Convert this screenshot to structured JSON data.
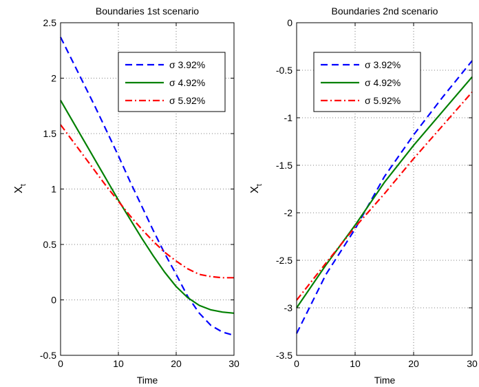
{
  "chart_data": [
    {
      "type": "line",
      "title": "Boundaries 1st scenario",
      "xlabel": "Time",
      "ylabel": "X",
      "ylabel_sub": "t",
      "xlim": [
        0,
        30
      ],
      "ylim": [
        -0.5,
        2.5
      ],
      "xticks": [
        0,
        10,
        20,
        30
      ],
      "xtick_labels": [
        "0",
        "10",
        "20",
        "30"
      ],
      "yticks": [
        -0.5,
        0,
        0.5,
        1,
        1.5,
        2,
        2.5
      ],
      "ytick_labels": [
        "-0.5",
        "0",
        "0.5",
        "1",
        "1.5",
        "2",
        "2.5"
      ],
      "grid": true,
      "legend_position": "top-right",
      "series": [
        {
          "name": "σ 3.92%",
          "color": "#0000ff",
          "style": "dashed",
          "x": [
            0,
            2,
            4,
            6,
            8,
            10,
            12,
            14,
            16,
            18,
            20,
            22,
            24,
            26,
            28,
            30
          ],
          "values": [
            2.37,
            2.16,
            1.95,
            1.74,
            1.52,
            1.3,
            1.07,
            0.85,
            0.63,
            0.42,
            0.23,
            0.03,
            -0.12,
            -0.23,
            -0.29,
            -0.32
          ]
        },
        {
          "name": "σ 4.92%",
          "color": "#008000",
          "style": "solid",
          "x": [
            0,
            2,
            4,
            6,
            8,
            10,
            12,
            14,
            16,
            18,
            20,
            22,
            24,
            26,
            28,
            30
          ],
          "values": [
            1.8,
            1.62,
            1.44,
            1.26,
            1.08,
            0.9,
            0.73,
            0.56,
            0.4,
            0.25,
            0.12,
            0.02,
            -0.05,
            -0.09,
            -0.11,
            -0.12
          ]
        },
        {
          "name": "σ 5.92%",
          "color": "#ff0000",
          "style": "dashdot",
          "x": [
            0,
            2,
            4,
            6,
            8,
            10,
            12,
            14,
            16,
            18,
            20,
            22,
            24,
            26,
            28,
            30
          ],
          "values": [
            1.58,
            1.44,
            1.3,
            1.16,
            1.02,
            0.89,
            0.76,
            0.64,
            0.53,
            0.43,
            0.35,
            0.28,
            0.23,
            0.21,
            0.2,
            0.2
          ]
        }
      ]
    },
    {
      "type": "line",
      "title": "Boundaries 2nd scenario",
      "xlabel": "Time",
      "ylabel": "X",
      "ylabel_sub": "t",
      "xlim": [
        0,
        30
      ],
      "ylim": [
        -3.5,
        0
      ],
      "xticks": [
        0,
        10,
        20,
        30
      ],
      "xtick_labels": [
        "0",
        "10",
        "20",
        "30"
      ],
      "yticks": [
        -3.5,
        -3,
        -2.5,
        -2,
        -1.5,
        -1,
        -0.5,
        0
      ],
      "ytick_labels": [
        "-3.5",
        "-3",
        "-2.5",
        "-2",
        "-1.5",
        "-1",
        "-0.5",
        "0"
      ],
      "grid": true,
      "legend_position": "top-left",
      "series": [
        {
          "name": "σ 3.92%",
          "color": "#0000ff",
          "style": "dashed",
          "x": [
            0,
            5,
            10,
            15,
            20,
            25,
            30
          ],
          "values": [
            -3.27,
            -2.65,
            -2.17,
            -1.62,
            -1.18,
            -0.78,
            -0.4
          ]
        },
        {
          "name": "σ 4.92%",
          "color": "#008000",
          "style": "solid",
          "x": [
            0,
            5,
            10,
            15,
            20,
            25,
            30
          ],
          "values": [
            -3.0,
            -2.55,
            -2.13,
            -1.68,
            -1.29,
            -0.93,
            -0.57
          ]
        },
        {
          "name": "σ 5.92%",
          "color": "#ff0000",
          "style": "dashdot",
          "x": [
            0,
            5,
            10,
            15,
            20,
            25,
            30
          ],
          "values": [
            -2.92,
            -2.53,
            -2.15,
            -1.8,
            -1.43,
            -1.08,
            -0.73
          ]
        }
      ]
    }
  ]
}
